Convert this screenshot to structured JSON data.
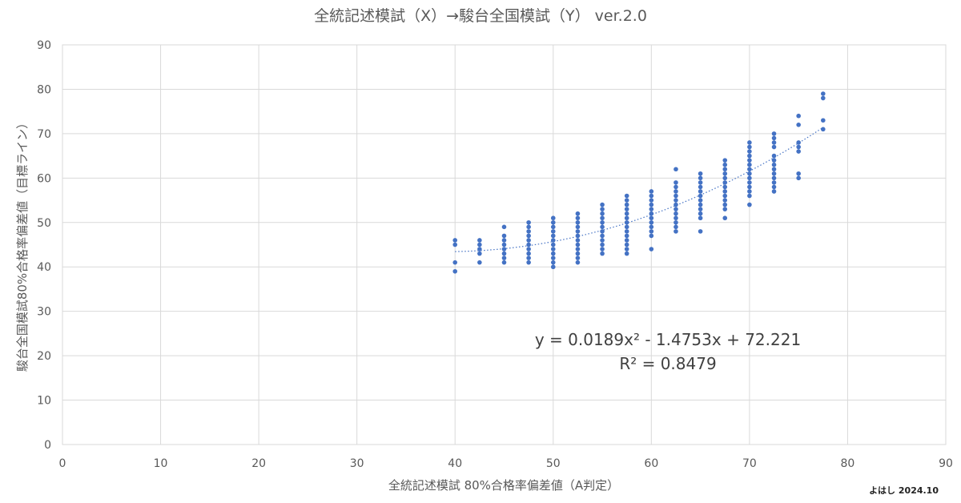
{
  "chart_data": {
    "type": "scatter",
    "title": "全統記述模試（X）→駿台全国模試（Y） ver.2.0",
    "xlabel": "全統記述模試 80%合格率偏差値（A判定）",
    "ylabel": "駿台全国模試80%合格率偏差値（目標ライン）",
    "xlim": [
      0,
      90
    ],
    "ylim": [
      0,
      90
    ],
    "x_ticks": [
      "0",
      "10",
      "20",
      "30",
      "40",
      "50",
      "60",
      "70",
      "80",
      "90"
    ],
    "y_ticks": [
      "0",
      "10",
      "20",
      "30",
      "40",
      "50",
      "60",
      "70",
      "80",
      "90"
    ],
    "grid": true,
    "marker_color": "#4472c4",
    "trend_color": "#4472c4",
    "trendline": {
      "type": "polynomial",
      "coefficients": [
        0.0189,
        -1.4753,
        72.221
      ],
      "x_range": [
        40,
        77.5
      ],
      "equation": "y = 0.0189x² - 1.4753x + 72.221",
      "r_squared": "R² = 0.8479"
    },
    "point_groups": [
      {
        "x": 40,
        "y": [
          39,
          41,
          45,
          46
        ]
      },
      {
        "x": 42.5,
        "y": [
          41,
          43,
          44,
          45,
          46
        ]
      },
      {
        "x": 45,
        "y": [
          41,
          42,
          43,
          44,
          45,
          46,
          47,
          49
        ]
      },
      {
        "x": 47.5,
        "y": [
          41,
          42,
          43,
          44,
          45,
          46,
          47,
          48,
          49,
          50
        ]
      },
      {
        "x": 50,
        "y": [
          40,
          41,
          42,
          43,
          44,
          45,
          46,
          47,
          48,
          49,
          50,
          51
        ]
      },
      {
        "x": 52.5,
        "y": [
          41,
          42,
          43,
          44,
          45,
          46,
          47,
          48,
          49,
          50,
          51,
          52
        ]
      },
      {
        "x": 55,
        "y": [
          43,
          44,
          45,
          46,
          47,
          48,
          49,
          50,
          51,
          52,
          53,
          54
        ]
      },
      {
        "x": 57.5,
        "y": [
          43,
          44,
          45,
          46,
          47,
          48,
          49,
          50,
          51,
          52,
          53,
          54,
          55,
          56
        ]
      },
      {
        "x": 60,
        "y": [
          44,
          47,
          48,
          49,
          50,
          51,
          52,
          53,
          54,
          55,
          56,
          57
        ]
      },
      {
        "x": 62.5,
        "y": [
          48,
          49,
          50,
          51,
          52,
          53,
          54,
          55,
          56,
          57,
          58,
          59,
          62
        ]
      },
      {
        "x": 65,
        "y": [
          48,
          51,
          52,
          53,
          54,
          55,
          56,
          57,
          58,
          59,
          60,
          61
        ]
      },
      {
        "x": 67.5,
        "y": [
          51,
          53,
          54,
          55,
          56,
          57,
          58,
          59,
          60,
          61,
          62,
          63,
          64
        ]
      },
      {
        "x": 70,
        "y": [
          54,
          56,
          57,
          58,
          59,
          60,
          61,
          62,
          63,
          64,
          65,
          66,
          67,
          68
        ]
      },
      {
        "x": 72.5,
        "y": [
          57,
          58,
          59,
          60,
          61,
          62,
          63,
          64,
          65,
          67,
          68,
          69,
          70
        ]
      },
      {
        "x": 75,
        "y": [
          60,
          61,
          66,
          67,
          68,
          72,
          74
        ]
      },
      {
        "x": 77.5,
        "y": [
          71,
          73,
          78,
          79
        ]
      }
    ]
  },
  "footer": {
    "credit": "よはし 2024.10"
  }
}
